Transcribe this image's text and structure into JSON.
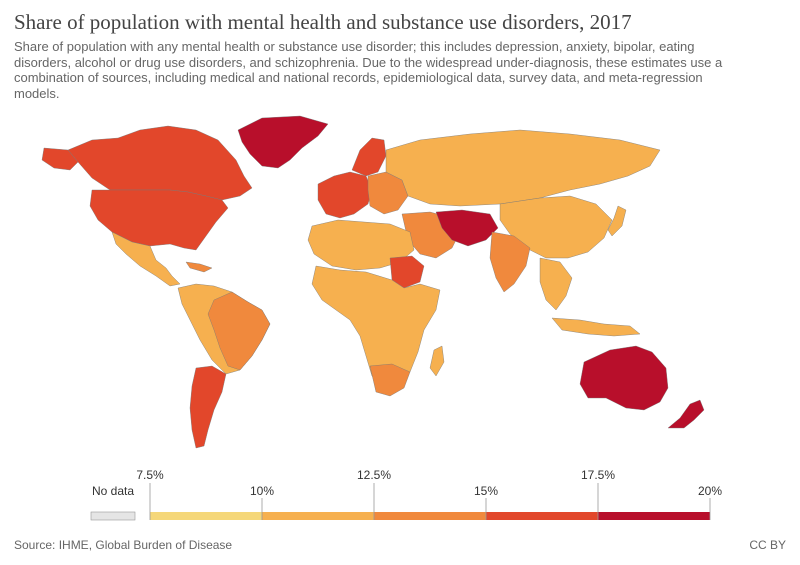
{
  "title": "Share of population with mental health and substance use disorders, 2017",
  "subtitle": "Share of population with any mental health or substance use disorder; this includes depression, anxiety, bipolar, eating disorders, alcohol or drug use disorders, and schizophrenia. Due to the widespread under-diagnosis, these estimates use a combination of sources, including medical and national records, epidemiological data, survey data, and meta-regression models.",
  "legend": {
    "no_data_label": "No data",
    "bins": [
      {
        "color": "#f5d779"
      },
      {
        "color": "#f6b04f"
      },
      {
        "color": "#f0893d"
      },
      {
        "color": "#e2472b"
      },
      {
        "color": "#b80f2b"
      }
    ],
    "no_data_color": "#e5e5e5",
    "ticks_top": [
      "7.5%",
      "12.5%",
      "17.5%"
    ],
    "ticks_bottom": [
      "10%",
      "15%",
      "20%"
    ]
  },
  "source": "Source: IHME, Global Burden of Disease",
  "license": "CC BY"
}
